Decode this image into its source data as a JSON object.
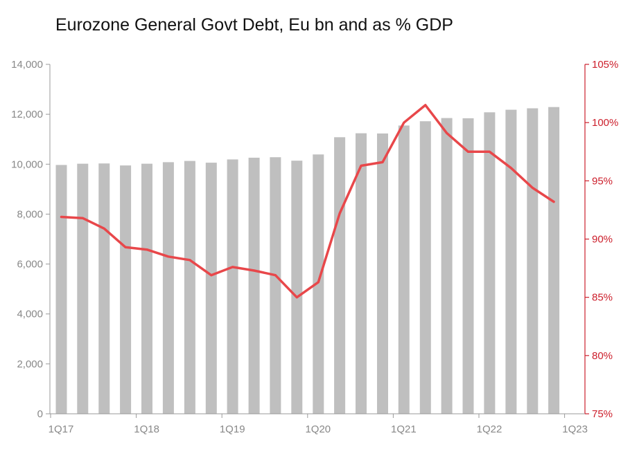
{
  "chart_data": {
    "type": "bar+line",
    "title": "Eurozone General Govt Debt, Eu bn and as % GDP",
    "quarters": [
      "1Q17",
      "2Q17",
      "3Q17",
      "4Q17",
      "1Q18",
      "2Q18",
      "3Q18",
      "4Q18",
      "1Q19",
      "2Q19",
      "3Q19",
      "4Q19",
      "1Q20",
      "2Q20",
      "3Q20",
      "4Q20",
      "1Q21",
      "2Q21",
      "3Q21",
      "4Q21",
      "1Q22",
      "2Q22",
      "3Q22",
      "4Q22"
    ],
    "x_tick_labels": [
      "1Q17",
      "1Q18",
      "1Q19",
      "1Q20",
      "1Q21",
      "1Q22",
      "1Q23"
    ],
    "bars": {
      "axis": "left",
      "values": [
        9970,
        10020,
        10030,
        9950,
        10020,
        10080,
        10130,
        10060,
        10190,
        10260,
        10280,
        10140,
        10390,
        11080,
        11240,
        11230,
        11550,
        11720,
        11850,
        11840,
        12080,
        12180,
        12240,
        12290
      ]
    },
    "line": {
      "axis": "right",
      "values": [
        91.9,
        91.8,
        90.9,
        89.3,
        89.1,
        88.5,
        88.2,
        86.9,
        87.6,
        87.3,
        86.9,
        85.0,
        86.3,
        92.2,
        96.3,
        96.6,
        100.0,
        101.5,
        99.1,
        97.5,
        97.5,
        96.1,
        94.4,
        93.2
      ]
    },
    "y_left": {
      "min": 0,
      "max": 14000,
      "step": 2000,
      "tick_labels": [
        "0",
        "2,000",
        "4,000",
        "6,000",
        "8,000",
        "10,000",
        "12,000",
        "14,000"
      ]
    },
    "y_right": {
      "min": 75,
      "max": 105,
      "step": 5,
      "tick_labels": [
        "75%",
        "80%",
        "85%",
        "90%",
        "95%",
        "100%",
        "105%"
      ]
    },
    "grid": false,
    "legend": "none",
    "colors": {
      "bar": "#bfbfbf",
      "line": "#e8474a",
      "right_axis": "#cc1e2b",
      "left_axis": "#999999",
      "tick_text": "#888888"
    }
  }
}
